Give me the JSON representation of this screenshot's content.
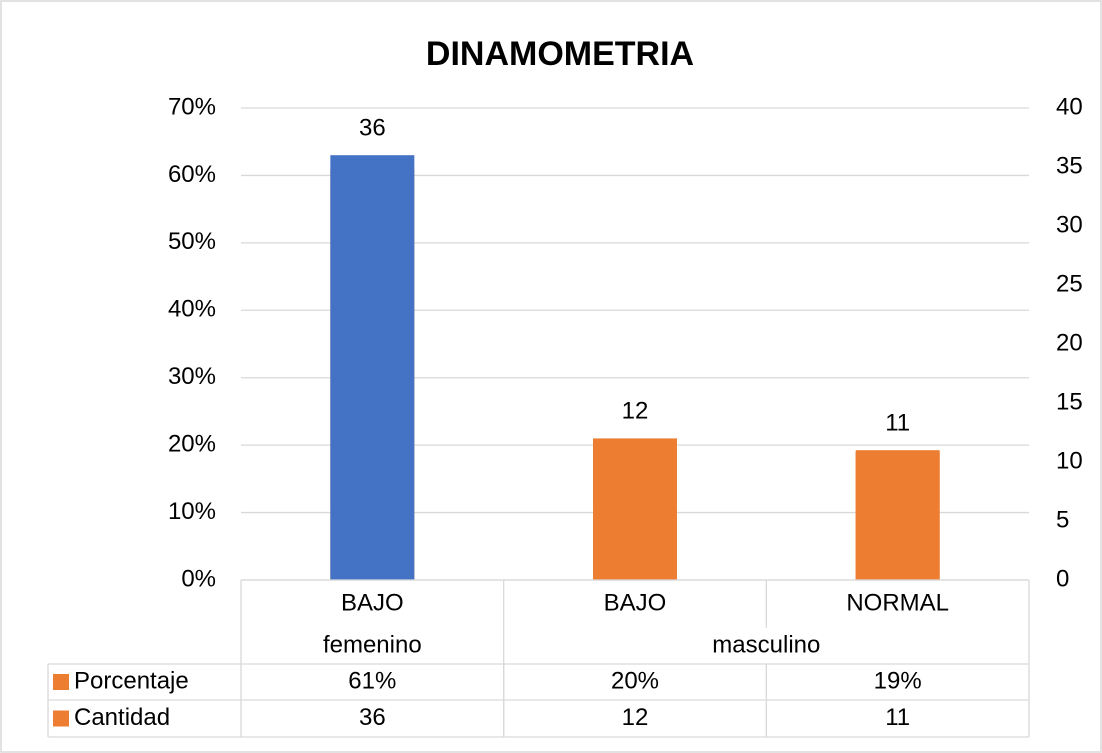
{
  "chart_data": {
    "type": "bar",
    "title": "DINAMOMETRIA",
    "categories": [
      "BAJO",
      "BAJO",
      "NORMAL"
    ],
    "groups": [
      {
        "name": "femenino",
        "span": 1
      },
      {
        "name": "masculino",
        "span": 2
      }
    ],
    "series": [
      {
        "name": "Porcentaje",
        "color": "#ed7d31",
        "axis": "y",
        "values": [
          61,
          20,
          19
        ],
        "value_labels": [
          "61%",
          "20%",
          "19%"
        ]
      },
      {
        "name": "Cantidad",
        "color": "#ed7d31",
        "colors": [
          "#4472c4",
          "#ed7d31",
          "#ed7d31"
        ],
        "axis": "y2",
        "values": [
          36,
          12,
          11
        ]
      }
    ],
    "ylim": [
      0,
      70
    ],
    "yticks": [
      {
        "value": 0,
        "label": "0%"
      },
      {
        "value": 10,
        "label": "10%"
      },
      {
        "value": 20,
        "label": "20%"
      },
      {
        "value": 30,
        "label": "30%"
      },
      {
        "value": 40,
        "label": "40%"
      },
      {
        "value": 50,
        "label": "50%"
      },
      {
        "value": 60,
        "label": "60%"
      },
      {
        "value": 70,
        "label": "70%"
      }
    ],
    "y2lim": [
      0,
      40
    ],
    "y2ticks": [
      0,
      5,
      10,
      15,
      20,
      25,
      30,
      35,
      40
    ],
    "grid": true
  }
}
